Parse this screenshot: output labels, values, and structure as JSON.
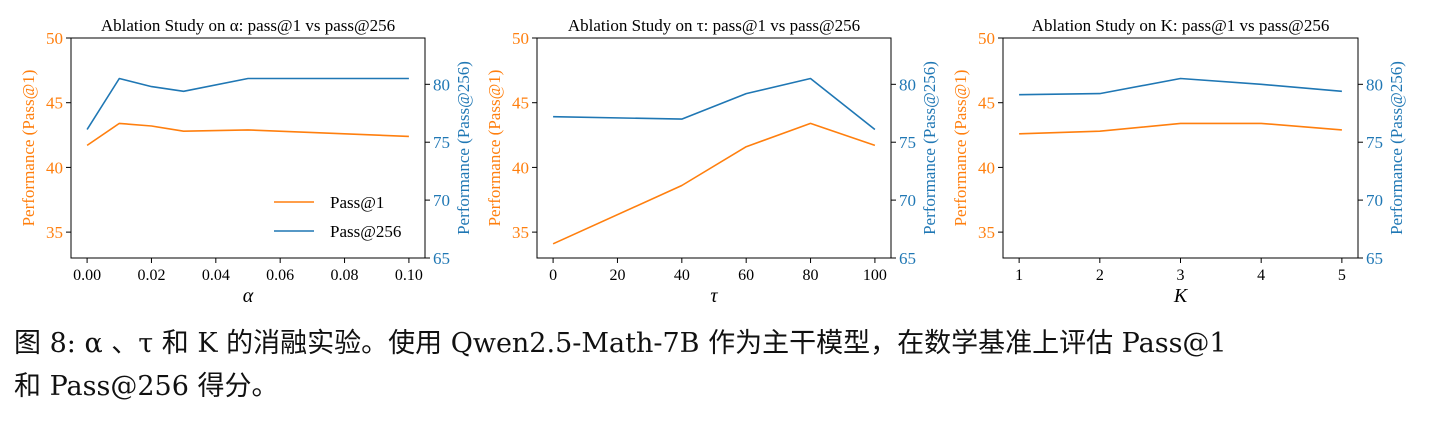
{
  "colors": {
    "pass1": "#ff7f0e",
    "pass256": "#1f77b4",
    "axis": "#000000"
  },
  "chart_data": [
    {
      "type": "line",
      "title": "Ablation Study on α: pass@1 vs pass@256",
      "xlabel": "α",
      "ylabel_left": "Performance (Pass@1)",
      "ylabel_right": "Performance (Pass@256)",
      "x": [
        0.0,
        0.01,
        0.02,
        0.03,
        0.05,
        0.1
      ],
      "xlim": [
        -0.005,
        0.105
      ],
      "xticks": [
        "0.00",
        "0.02",
        "0.04",
        "0.06",
        "0.08",
        "0.10"
      ],
      "xtick_values": [
        0.0,
        0.02,
        0.04,
        0.06,
        0.08,
        0.1
      ],
      "ylim_left": [
        33,
        50
      ],
      "yticks_left": [
        35,
        40,
        45,
        50
      ],
      "ylim_right": [
        65,
        84
      ],
      "yticks_right": [
        65,
        70,
        75,
        80
      ],
      "legend": {
        "placement": "lower-right"
      },
      "series": [
        {
          "name": "Pass@1",
          "axis": "left",
          "values": [
            41.7,
            43.4,
            43.2,
            42.8,
            42.9,
            42.4
          ]
        },
        {
          "name": "Pass@256",
          "axis": "right",
          "values": [
            76.1,
            80.5,
            79.8,
            79.4,
            80.5,
            80.5
          ]
        }
      ]
    },
    {
      "type": "line",
      "title": "Ablation Study on τ: pass@1 vs pass@256",
      "xlabel": "τ",
      "ylabel_left": "Performance (Pass@1)",
      "ylabel_right": "Performance (Pass@256)",
      "x": [
        0,
        40,
        60,
        80,
        100
      ],
      "xlim": [
        -5,
        105
      ],
      "xticks": [
        "0",
        "20",
        "40",
        "60",
        "80",
        "100"
      ],
      "xtick_values": [
        0,
        20,
        40,
        60,
        80,
        100
      ],
      "ylim_left": [
        33,
        50
      ],
      "yticks_left": [
        35,
        40,
        45,
        50
      ],
      "ylim_right": [
        65,
        84
      ],
      "yticks_right": [
        65,
        70,
        75,
        80
      ],
      "series": [
        {
          "name": "Pass@1",
          "axis": "left",
          "values": [
            34.1,
            38.6,
            41.6,
            43.4,
            41.7
          ]
        },
        {
          "name": "Pass@256",
          "axis": "right",
          "values": [
            77.2,
            77.0,
            79.2,
            80.5,
            76.1
          ]
        }
      ]
    },
    {
      "type": "line",
      "title": "Ablation Study on K: pass@1 vs pass@256",
      "xlabel": "K",
      "ylabel_left": "Performance (Pass@1)",
      "ylabel_right": "Performance (Pass@256)",
      "x": [
        1,
        2,
        3,
        4,
        5
      ],
      "xlim": [
        0.8,
        5.2
      ],
      "xticks": [
        "1",
        "2",
        "3",
        "4",
        "5"
      ],
      "xtick_values": [
        1,
        2,
        3,
        4,
        5
      ],
      "ylim_left": [
        33,
        50
      ],
      "yticks_left": [
        35,
        40,
        45,
        50
      ],
      "ylim_right": [
        65,
        84
      ],
      "yticks_right": [
        65,
        70,
        75,
        80
      ],
      "series": [
        {
          "name": "Pass@1",
          "axis": "left",
          "values": [
            42.6,
            42.8,
            43.4,
            43.4,
            42.9
          ]
        },
        {
          "name": "Pass@256",
          "axis": "right",
          "values": [
            79.1,
            79.2,
            80.5,
            80.0,
            79.4
          ]
        }
      ]
    }
  ],
  "caption": {
    "line1": "图 8: α 、τ 和 K 的消融实验。使用 Qwen2.5-Math-7B 作为主干模型，在数学基准上评估 Pass@1",
    "line2": "和 Pass@256 得分。"
  }
}
